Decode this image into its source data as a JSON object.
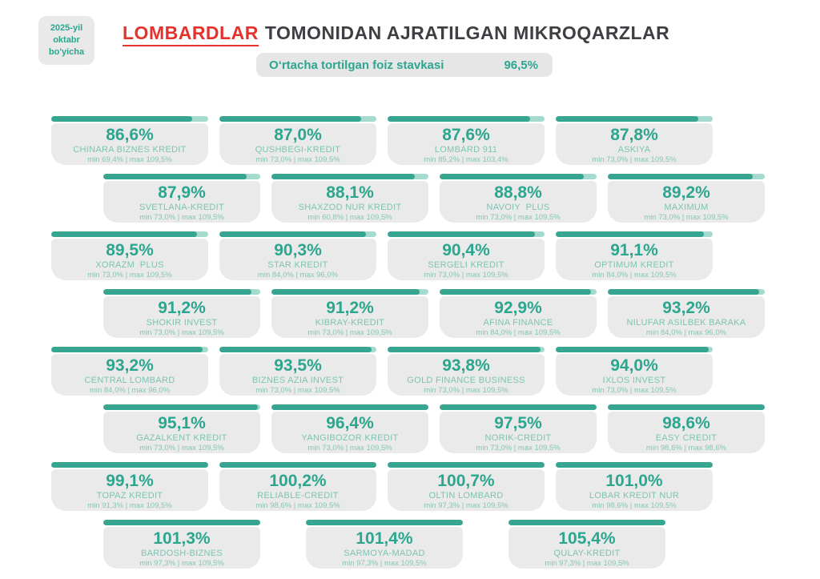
{
  "badge": {
    "lines": [
      "2025-yil",
      "oktabr",
      "bo'yicha"
    ]
  },
  "title": {
    "highlight": "LOMBARDLAR",
    "rest": "TOMONIDAN AJRATILGAN MIKROQARZLAR"
  },
  "subtitle": {
    "label": "O‘rtacha tortilgan foiz stavkasi",
    "value": "96,5%"
  },
  "colors": {
    "accent_teal": "#2ca68f",
    "bar_fill": "#38a591",
    "bar_track": "#a5dbce",
    "card_bg": "#eaeaea",
    "title_red": "#e5322d",
    "title_dark": "#3e3e43"
  },
  "chart_data": {
    "type": "bar",
    "title": "LOMBARDLAR TOMONIDAN AJRATILGAN MIKROQARZLAR",
    "subtitle_period": "2025-yil oktabr bo'yicha",
    "unit": "%",
    "average": {
      "label": "O‘rtacha tortilgan foiz stavkasi",
      "value": 96.5
    },
    "bar_scale_max": 96.5,
    "layout_rows": [
      4,
      4,
      4,
      4,
      4,
      4,
      4,
      3
    ],
    "items": [
      {
        "name": "CHINARA BIZNES KREDIT",
        "value": 86.6,
        "rate_label": "86,6%",
        "min": 69.4,
        "max": 109.5,
        "range_label": "min 69,4% | max 109,5%"
      },
      {
        "name": "QUSHBEGI-KREDIT",
        "value": 87.0,
        "rate_label": "87,0%",
        "min": 73.0,
        "max": 109.5,
        "range_label": "min 73,0% | max 109,5%"
      },
      {
        "name": "LOMBARD 911",
        "value": 87.6,
        "rate_label": "87,6%",
        "min": 85.2,
        "max": 103.4,
        "range_label": "min 85,2% | max 103,4%"
      },
      {
        "name": "ASKIYA",
        "value": 87.8,
        "rate_label": "87,8%",
        "min": 73.0,
        "max": 109.5,
        "range_label": "min 73,0% | max 109,5%"
      },
      {
        "name": "SVETLANA-KREDIT",
        "value": 87.9,
        "rate_label": "87,9%",
        "min": 73.0,
        "max": 109.5,
        "range_label": "min 73,0% | max 109,5%"
      },
      {
        "name": "SHAXZOD NUR KREDIT",
        "value": 88.1,
        "rate_label": "88,1%",
        "min": 60.8,
        "max": 109.5,
        "range_label": "min 60,8% | max 109,5%"
      },
      {
        "name": "NAVOIY  PLUS",
        "value": 88.8,
        "rate_label": "88,8%",
        "min": 73.0,
        "max": 109.5,
        "range_label": "min 73,0% | max 109,5%"
      },
      {
        "name": "MAXIMUM",
        "value": 89.2,
        "rate_label": "89,2%",
        "min": 73.0,
        "max": 109.5,
        "range_label": "min 73,0% | max 109,5%"
      },
      {
        "name": "XORAZM  PLUS",
        "value": 89.5,
        "rate_label": "89,5%",
        "min": 73.0,
        "max": 109.5,
        "range_label": "min 73,0% | max 109,5%"
      },
      {
        "name": "STAR KREDIT",
        "value": 90.3,
        "rate_label": "90,3%",
        "min": 84.0,
        "max": 96.0,
        "range_label": "min 84,0% | max 96,0%"
      },
      {
        "name": "SERGELI KREDIT",
        "value": 90.4,
        "rate_label": "90,4%",
        "min": 73.0,
        "max": 109.5,
        "range_label": "min 73,0% | max 109,5%"
      },
      {
        "name": "OPTIMUM KREDIT",
        "value": 91.1,
        "rate_label": "91,1%",
        "min": 84.0,
        "max": 109.5,
        "range_label": "min 84,0% | max 109,5%"
      },
      {
        "name": "SHOKIR INVEST",
        "value": 91.2,
        "rate_label": "91,2%",
        "min": 73.0,
        "max": 109.5,
        "range_label": "min 73,0% | max 109,5%"
      },
      {
        "name": "KIBRAY-KREDIT",
        "value": 91.2,
        "rate_label": "91,2%",
        "min": 73.0,
        "max": 109.5,
        "range_label": "min 73,0% | max 109,5%"
      },
      {
        "name": "AFINA FINANCE",
        "value": 92.9,
        "rate_label": "92,9%",
        "min": 84.0,
        "max": 109.5,
        "range_label": "min 84,0% | max 109,5%"
      },
      {
        "name": "NILUFAR ASILBEK BARAKA",
        "value": 93.2,
        "rate_label": "93,2%",
        "min": 84.0,
        "max": 96.0,
        "range_label": "min 84,0% | max 96,0%"
      },
      {
        "name": "CENTRAL LOMBARD",
        "value": 93.2,
        "rate_label": "93,2%",
        "min": 84.0,
        "max": 96.0,
        "range_label": "min 84,0% | max 96,0%"
      },
      {
        "name": "BIZNES AZIA INVEST",
        "value": 93.5,
        "rate_label": "93,5%",
        "min": 73.0,
        "max": 109.5,
        "range_label": "min 73,0% | max 109,5%"
      },
      {
        "name": "GOLD FINANCE BUSINESS",
        "value": 93.8,
        "rate_label": "93,8%",
        "min": 73.0,
        "max": 109.5,
        "range_label": "min 73,0% | max 109,5%"
      },
      {
        "name": "IXLOS INVEST",
        "value": 94.0,
        "rate_label": "94,0%",
        "min": 73.0,
        "max": 109.5,
        "range_label": "min 73,0% | max 109,5%"
      },
      {
        "name": "GAZALKENT KREDIT",
        "value": 95.1,
        "rate_label": "95,1%",
        "min": 73.0,
        "max": 109.5,
        "range_label": "min 73,0% | max 109,5%"
      },
      {
        "name": "YANGIBOZOR KREDIT",
        "value": 96.4,
        "rate_label": "96,4%",
        "min": 73.0,
        "max": 109.5,
        "range_label": "min 73,0% | max 109,5%"
      },
      {
        "name": "NORIK-CREDIT",
        "value": 97.5,
        "rate_label": "97,5%",
        "min": 73.0,
        "max": 109.5,
        "range_label": "min 73,0% | max 109,5%"
      },
      {
        "name": "EASY CREDIT",
        "value": 98.6,
        "rate_label": "98,6%",
        "min": 98.6,
        "max": 98.6,
        "range_label": "min 98,6% | max 98,6%"
      },
      {
        "name": "TOPAZ KREDIT",
        "value": 99.1,
        "rate_label": "99,1%",
        "min": 91.3,
        "max": 109.5,
        "range_label": "min 91,3% | max 109,5%"
      },
      {
        "name": "RELIABLE-CREDIT",
        "value": 100.2,
        "rate_label": "100,2%",
        "min": 98.6,
        "max": 109.5,
        "range_label": "min 98,6% | max 109,5%"
      },
      {
        "name": "OLTIN LOMBARD",
        "value": 100.7,
        "rate_label": "100,7%",
        "min": 97.3,
        "max": 109.5,
        "range_label": "min 97,3% | max 109,5%"
      },
      {
        "name": "LOBAR KREDIT NUR",
        "value": 101.0,
        "rate_label": "101,0%",
        "min": 98.6,
        "max": 109.5,
        "range_label": "min 98,6% | max 109,5%"
      },
      {
        "name": "BARDOSH-BIZNES",
        "value": 101.3,
        "rate_label": "101,3%",
        "min": 97.3,
        "max": 109.5,
        "range_label": "min 97,3% | max 109,5%"
      },
      {
        "name": "SARMOYA-MADAD",
        "value": 101.4,
        "rate_label": "101,4%",
        "min": 97.3,
        "max": 109.5,
        "range_label": "min 97,3% | max 109,5%"
      },
      {
        "name": "QULAY-KREDIT",
        "value": 105.4,
        "rate_label": "105,4%",
        "min": 97.3,
        "max": 109.5,
        "range_label": "min 97,3% | max 109,5%"
      }
    ]
  }
}
